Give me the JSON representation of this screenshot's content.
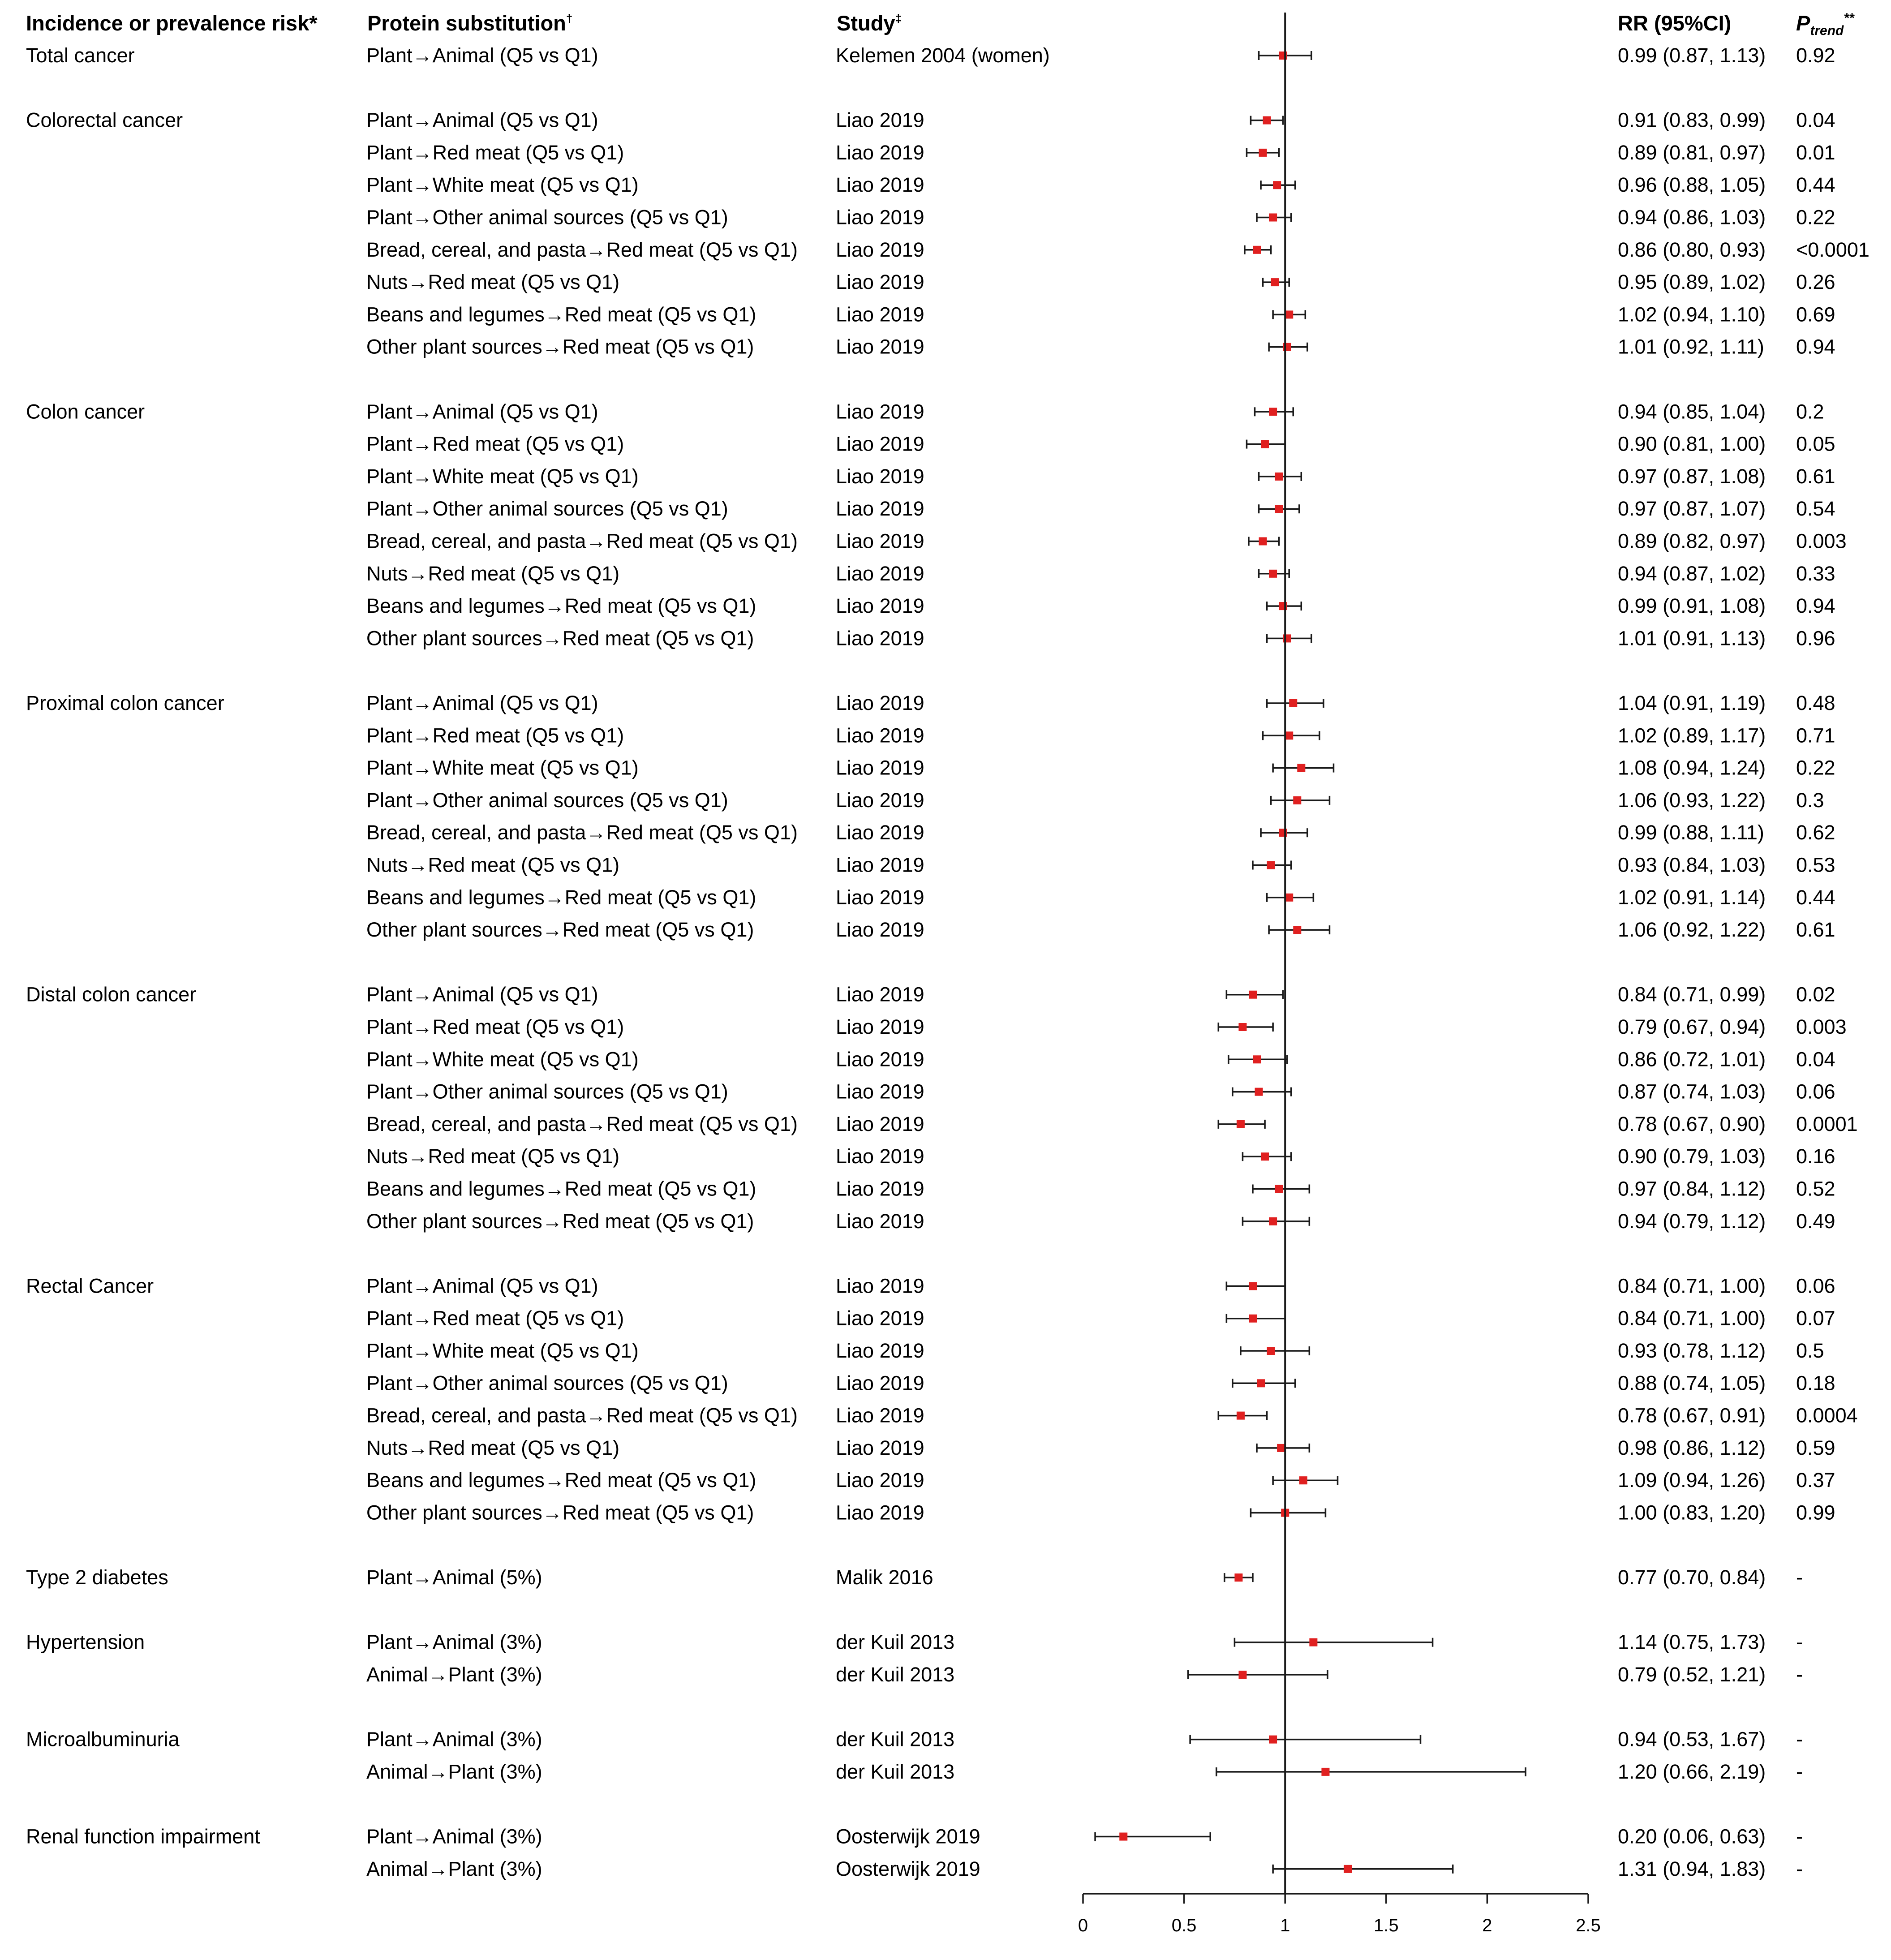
{
  "chart_data": {
    "type": "forest",
    "headers": {
      "outcome": "Incidence or prevalence risk*",
      "substitution": "Protein substitution",
      "substitution_mark": "†",
      "study": "Study",
      "study_mark": "‡",
      "rr": "RR (95%CI)",
      "ptrend_p": "P",
      "ptrend_sub": "trend",
      "ptrend_mark": "**"
    },
    "xaxis": {
      "min": 0,
      "max": 2.5,
      "ticks": [
        0,
        0.5,
        1,
        1.5,
        2,
        2.5
      ],
      "tick_labels": [
        "0",
        "0.5",
        "1",
        "1.5",
        "2",
        "2.5"
      ],
      "reference": 1
    },
    "groups": [
      {
        "outcome": "Total cancer",
        "rows": [
          {
            "sub": "Plant→Animal (Q5 vs Q1)",
            "study": "Kelemen 2004 (women)",
            "rr": 0.99,
            "lo": 0.87,
            "hi": 1.13,
            "rr_text": "0.99 (0.87, 1.13)",
            "p": "0.92"
          }
        ]
      },
      {
        "outcome": "Colorectal cancer",
        "rows": [
          {
            "sub": "Plant→Animal (Q5 vs Q1)",
            "study": "Liao 2019",
            "rr": 0.91,
            "lo": 0.83,
            "hi": 0.99,
            "rr_text": "0.91 (0.83, 0.99)",
            "p": "0.04"
          },
          {
            "sub": "Plant→Red meat (Q5 vs Q1)",
            "study": "Liao 2019",
            "rr": 0.89,
            "lo": 0.81,
            "hi": 0.97,
            "rr_text": "0.89 (0.81, 0.97)",
            "p": "0.01"
          },
          {
            "sub": "Plant→White meat (Q5 vs Q1)",
            "study": "Liao 2019",
            "rr": 0.96,
            "lo": 0.88,
            "hi": 1.05,
            "rr_text": "0.96 (0.88, 1.05)",
            "p": "0.44"
          },
          {
            "sub": "Plant→Other animal sources (Q5 vs Q1)",
            "study": "Liao 2019",
            "rr": 0.94,
            "lo": 0.86,
            "hi": 1.03,
            "rr_text": "0.94 (0.86, 1.03)",
            "p": "0.22"
          },
          {
            "sub": "Bread, cereal, and pasta→Red meat (Q5 vs Q1)",
            "study": "Liao 2019",
            "rr": 0.86,
            "lo": 0.8,
            "hi": 0.93,
            "rr_text": "0.86 (0.80, 0.93)",
            "p": "<0.0001"
          },
          {
            "sub": "Nuts→Red meat (Q5 vs Q1)",
            "study": "Liao 2019",
            "rr": 0.95,
            "lo": 0.89,
            "hi": 1.02,
            "rr_text": "0.95 (0.89, 1.02)",
            "p": "0.26"
          },
          {
            "sub": "Beans and legumes→Red meat (Q5 vs Q1)",
            "study": "Liao 2019",
            "rr": 1.02,
            "lo": 0.94,
            "hi": 1.1,
            "rr_text": "1.02 (0.94, 1.10)",
            "p": "0.69"
          },
          {
            "sub": "Other plant sources→Red meat (Q5 vs Q1)",
            "study": "Liao 2019",
            "rr": 1.01,
            "lo": 0.92,
            "hi": 1.11,
            "rr_text": "1.01 (0.92, 1.11)",
            "p": "0.94"
          }
        ]
      },
      {
        "outcome": "Colon cancer",
        "rows": [
          {
            "sub": "Plant→Animal (Q5 vs Q1)",
            "study": "Liao 2019",
            "rr": 0.94,
            "lo": 0.85,
            "hi": 1.04,
            "rr_text": "0.94 (0.85, 1.04)",
            "p": "0.2"
          },
          {
            "sub": "Plant→Red meat (Q5 vs Q1)",
            "study": "Liao 2019",
            "rr": 0.9,
            "lo": 0.81,
            "hi": 1.0,
            "rr_text": "0.90 (0.81, 1.00)",
            "p": "0.05"
          },
          {
            "sub": "Plant→White meat (Q5 vs Q1)",
            "study": "Liao 2019",
            "rr": 0.97,
            "lo": 0.87,
            "hi": 1.08,
            "rr_text": "0.97 (0.87, 1.08)",
            "p": "0.61"
          },
          {
            "sub": "Plant→Other animal sources (Q5 vs Q1)",
            "study": "Liao 2019",
            "rr": 0.97,
            "lo": 0.87,
            "hi": 1.07,
            "rr_text": "0.97 (0.87, 1.07)",
            "p": "0.54"
          },
          {
            "sub": "Bread, cereal, and pasta→Red meat (Q5 vs Q1)",
            "study": "Liao 2019",
            "rr": 0.89,
            "lo": 0.82,
            "hi": 0.97,
            "rr_text": "0.89 (0.82, 0.97)",
            "p": "0.003"
          },
          {
            "sub": "Nuts→Red meat (Q5 vs Q1)",
            "study": "Liao 2019",
            "rr": 0.94,
            "lo": 0.87,
            "hi": 1.02,
            "rr_text": "0.94 (0.87, 1.02)",
            "p": "0.33"
          },
          {
            "sub": "Beans and legumes→Red meat (Q5 vs Q1)",
            "study": "Liao 2019",
            "rr": 0.99,
            "lo": 0.91,
            "hi": 1.08,
            "rr_text": "0.99 (0.91, 1.08)",
            "p": "0.94"
          },
          {
            "sub": "Other plant sources→Red meat (Q5 vs Q1)",
            "study": "Liao 2019",
            "rr": 1.01,
            "lo": 0.91,
            "hi": 1.13,
            "rr_text": "1.01 (0.91, 1.13)",
            "p": "0.96"
          }
        ]
      },
      {
        "outcome": "Proximal colon cancer",
        "rows": [
          {
            "sub": "Plant→Animal (Q5 vs Q1)",
            "study": "Liao 2019",
            "rr": 1.04,
            "lo": 0.91,
            "hi": 1.19,
            "rr_text": "1.04 (0.91, 1.19)",
            "p": "0.48"
          },
          {
            "sub": "Plant→Red meat (Q5 vs Q1)",
            "study": "Liao 2019",
            "rr": 1.02,
            "lo": 0.89,
            "hi": 1.17,
            "rr_text": "1.02 (0.89, 1.17)",
            "p": "0.71"
          },
          {
            "sub": "Plant→White meat (Q5 vs Q1)",
            "study": "Liao 2019",
            "rr": 1.08,
            "lo": 0.94,
            "hi": 1.24,
            "rr_text": "1.08 (0.94, 1.24)",
            "p": "0.22"
          },
          {
            "sub": "Plant→Other animal sources (Q5 vs Q1)",
            "study": "Liao 2019",
            "rr": 1.06,
            "lo": 0.93,
            "hi": 1.22,
            "rr_text": "1.06 (0.93, 1.22)",
            "p": "0.3"
          },
          {
            "sub": "Bread, cereal, and pasta→Red meat (Q5 vs Q1)",
            "study": "Liao 2019",
            "rr": 0.99,
            "lo": 0.88,
            "hi": 1.11,
            "rr_text": "0.99 (0.88, 1.11)",
            "p": "0.62"
          },
          {
            "sub": "Nuts→Red meat (Q5 vs Q1)",
            "study": "Liao 2019",
            "rr": 0.93,
            "lo": 0.84,
            "hi": 1.03,
            "rr_text": "0.93 (0.84, 1.03)",
            "p": "0.53"
          },
          {
            "sub": "Beans and legumes→Red meat (Q5 vs Q1)",
            "study": "Liao 2019",
            "rr": 1.02,
            "lo": 0.91,
            "hi": 1.14,
            "rr_text": "1.02 (0.91, 1.14)",
            "p": "0.44"
          },
          {
            "sub": "Other plant sources→Red meat (Q5 vs Q1)",
            "study": "Liao 2019",
            "rr": 1.06,
            "lo": 0.92,
            "hi": 1.22,
            "rr_text": "1.06 (0.92, 1.22)",
            "p": "0.61"
          }
        ]
      },
      {
        "outcome": "Distal colon cancer",
        "rows": [
          {
            "sub": "Plant→Animal (Q5 vs Q1)",
            "study": "Liao 2019",
            "rr": 0.84,
            "lo": 0.71,
            "hi": 0.99,
            "rr_text": "0.84 (0.71, 0.99)",
            "p": "0.02"
          },
          {
            "sub": "Plant→Red meat (Q5 vs Q1)",
            "study": "Liao 2019",
            "rr": 0.79,
            "lo": 0.67,
            "hi": 0.94,
            "rr_text": "0.79 (0.67, 0.94)",
            "p": "0.003"
          },
          {
            "sub": "Plant→White meat (Q5 vs Q1)",
            "study": "Liao 2019",
            "rr": 0.86,
            "lo": 0.72,
            "hi": 1.01,
            "rr_text": "0.86 (0.72, 1.01)",
            "p": "0.04"
          },
          {
            "sub": "Plant→Other animal sources (Q5 vs Q1)",
            "study": "Liao 2019",
            "rr": 0.87,
            "lo": 0.74,
            "hi": 1.03,
            "rr_text": "0.87 (0.74, 1.03)",
            "p": "0.06"
          },
          {
            "sub": "Bread, cereal, and pasta→Red meat (Q5 vs Q1)",
            "study": "Liao 2019",
            "rr": 0.78,
            "lo": 0.67,
            "hi": 0.9,
            "rr_text": "0.78 (0.67, 0.90)",
            "p": "0.0001"
          },
          {
            "sub": "Nuts→Red meat (Q5 vs Q1)",
            "study": "Liao 2019",
            "rr": 0.9,
            "lo": 0.79,
            "hi": 1.03,
            "rr_text": "0.90 (0.79, 1.03)",
            "p": "0.16"
          },
          {
            "sub": "Beans and legumes→Red meat (Q5 vs Q1)",
            "study": "Liao 2019",
            "rr": 0.97,
            "lo": 0.84,
            "hi": 1.12,
            "rr_text": "0.97 (0.84, 1.12)",
            "p": "0.52"
          },
          {
            "sub": "Other plant sources→Red meat (Q5 vs Q1)",
            "study": "Liao 2019",
            "rr": 0.94,
            "lo": 0.79,
            "hi": 1.12,
            "rr_text": "0.94 (0.79, 1.12)",
            "p": "0.49"
          }
        ]
      },
      {
        "outcome": "Rectal Cancer",
        "rows": [
          {
            "sub": "Plant→Animal (Q5 vs Q1)",
            "study": "Liao 2019",
            "rr": 0.84,
            "lo": 0.71,
            "hi": 1.0,
            "rr_text": "0.84 (0.71, 1.00)",
            "p": "0.06"
          },
          {
            "sub": "Plant→Red meat (Q5 vs Q1)",
            "study": "Liao 2019",
            "rr": 0.84,
            "lo": 0.71,
            "hi": 1.0,
            "rr_text": "0.84 (0.71, 1.00)",
            "p": "0.07"
          },
          {
            "sub": "Plant→White meat (Q5 vs Q1)",
            "study": "Liao 2019",
            "rr": 0.93,
            "lo": 0.78,
            "hi": 1.12,
            "rr_text": "0.93 (0.78, 1.12)",
            "p": "0.5"
          },
          {
            "sub": "Plant→Other animal sources (Q5 vs Q1)",
            "study": "Liao 2019",
            "rr": 0.88,
            "lo": 0.74,
            "hi": 1.05,
            "rr_text": "0.88 (0.74, 1.05)",
            "p": "0.18"
          },
          {
            "sub": "Bread, cereal, and pasta→Red meat (Q5 vs Q1)",
            "study": "Liao 2019",
            "rr": 0.78,
            "lo": 0.67,
            "hi": 0.91,
            "rr_text": "0.78 (0.67, 0.91)",
            "p": "0.0004"
          },
          {
            "sub": "Nuts→Red meat (Q5 vs Q1)",
            "study": "Liao 2019",
            "rr": 0.98,
            "lo": 0.86,
            "hi": 1.12,
            "rr_text": "0.98 (0.86, 1.12)",
            "p": "0.59"
          },
          {
            "sub": "Beans and legumes→Red meat (Q5 vs Q1)",
            "study": "Liao 2019",
            "rr": 1.09,
            "lo": 0.94,
            "hi": 1.26,
            "rr_text": "1.09 (0.94, 1.26)",
            "p": "0.37"
          },
          {
            "sub": "Other plant sources→Red meat (Q5 vs Q1)",
            "study": "Liao 2019",
            "rr": 1.0,
            "lo": 0.83,
            "hi": 1.2,
            "rr_text": "1.00 (0.83, 1.20)",
            "p": "0.99"
          }
        ]
      },
      {
        "outcome": "Type 2 diabetes",
        "rows": [
          {
            "sub": "Plant→Animal (5%)",
            "study": "Malik 2016",
            "rr": 0.77,
            "lo": 0.7,
            "hi": 0.84,
            "rr_text": "0.77 (0.70, 0.84)",
            "p": "-"
          }
        ]
      },
      {
        "outcome": "Hypertension",
        "rows": [
          {
            "sub": "Plant→Animal (3%)",
            "study": "der Kuil 2013",
            "rr": 1.14,
            "lo": 0.75,
            "hi": 1.73,
            "rr_text": "1.14 (0.75, 1.73)",
            "p": "-"
          },
          {
            "sub": "Animal→Plant (3%)",
            "study": "der Kuil 2013",
            "rr": 0.79,
            "lo": 0.52,
            "hi": 1.21,
            "rr_text": "0.79 (0.52, 1.21)",
            "p": "-"
          }
        ]
      },
      {
        "outcome": "Microalbuminuria",
        "rows": [
          {
            "sub": "Plant→Animal (3%)",
            "study": "der Kuil 2013",
            "rr": 0.94,
            "lo": 0.53,
            "hi": 1.67,
            "rr_text": "0.94 (0.53, 1.67)",
            "p": "-"
          },
          {
            "sub": "Animal→Plant (3%)",
            "study": "der Kuil 2013",
            "rr": 1.2,
            "lo": 0.66,
            "hi": 2.19,
            "rr_text": "1.20 (0.66, 2.19)",
            "p": "-"
          }
        ]
      },
      {
        "outcome": "Renal function impairment",
        "rows": [
          {
            "sub": "Plant→Animal (3%)",
            "study": "Oosterwijk 2019",
            "rr": 0.2,
            "lo": 0.06,
            "hi": 0.63,
            "rr_text": "0.20 (0.06, 0.63)",
            "p": "-"
          },
          {
            "sub": "Animal→Plant (3%)",
            "study": "Oosterwijk 2019",
            "rr": 1.31,
            "lo": 0.94,
            "hi": 1.83,
            "rr_text": "1.31 (0.94, 1.83)",
            "p": "-"
          }
        ]
      }
    ],
    "colors": {
      "point": "#e02020",
      "line": "#1a1a1a"
    }
  }
}
